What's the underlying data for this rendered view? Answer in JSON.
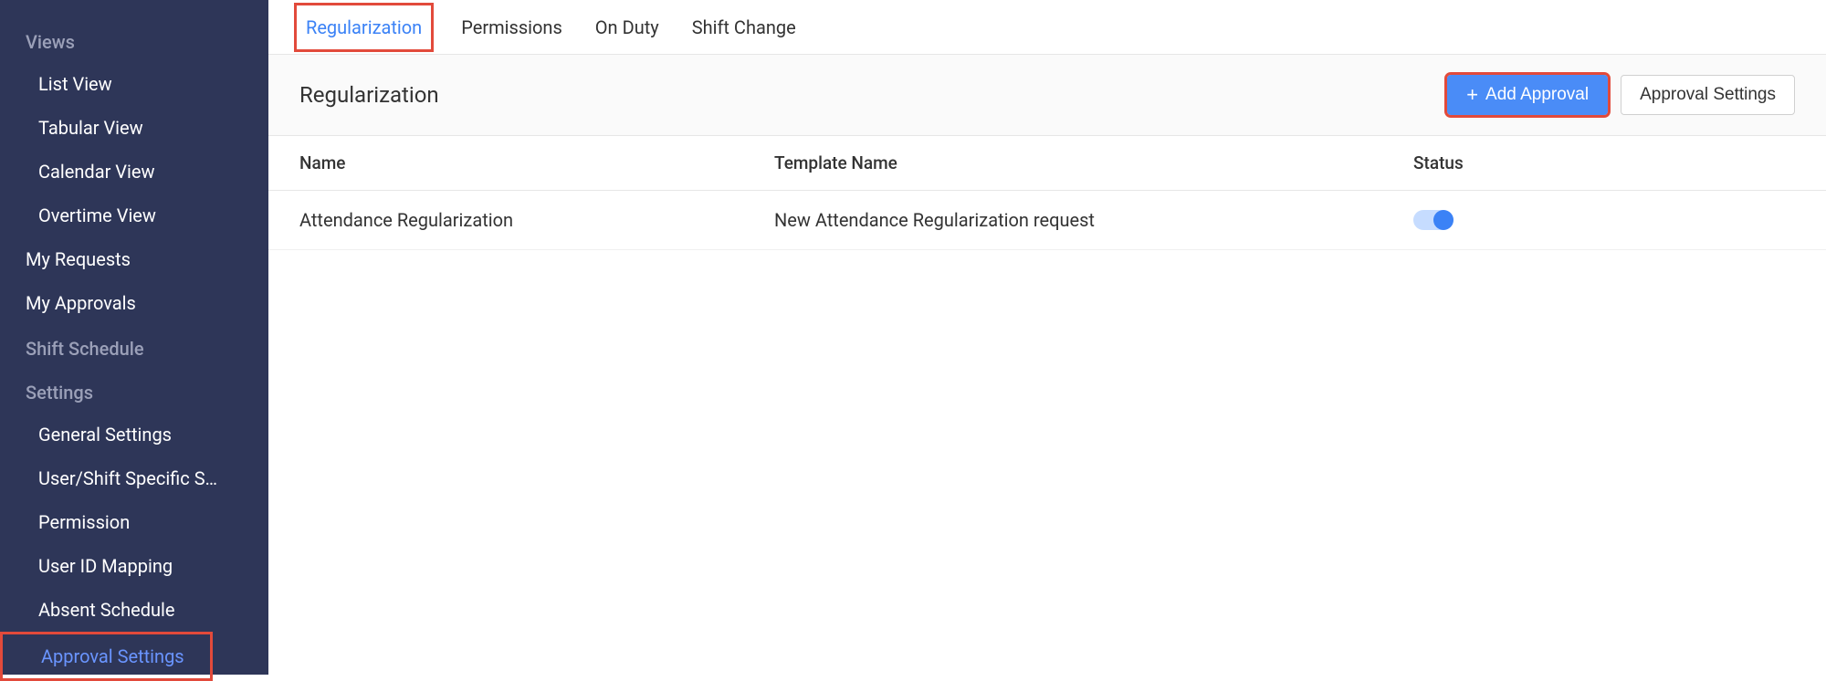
{
  "sidebar": {
    "sections": [
      {
        "label": "Views",
        "items": [
          {
            "label": "List View",
            "indent": true
          },
          {
            "label": "Tabular View",
            "indent": true
          },
          {
            "label": "Calendar View",
            "indent": true
          },
          {
            "label": "Overtime View",
            "indent": true
          }
        ]
      }
    ],
    "top_items": [
      {
        "label": "My Requests"
      },
      {
        "label": "My Approvals"
      },
      {
        "label": "Shift Schedule",
        "is_section": true
      }
    ],
    "settings_section": {
      "label": "Settings",
      "items": [
        {
          "label": "General Settings"
        },
        {
          "label": "User/Shift Specific S…"
        },
        {
          "label": "Permission"
        },
        {
          "label": "User ID Mapping"
        },
        {
          "label": "Absent Schedule"
        },
        {
          "label": "Approval Settings",
          "active": true,
          "highlighted": true
        }
      ]
    }
  },
  "tabs": [
    {
      "label": "Regularization",
      "active": true,
      "highlighted": true
    },
    {
      "label": "Permissions"
    },
    {
      "label": "On Duty"
    },
    {
      "label": "Shift Change"
    }
  ],
  "page": {
    "title": "Regularization",
    "add_button": "Add Approval",
    "settings_button": "Approval Settings"
  },
  "table": {
    "columns": {
      "name": "Name",
      "template": "Template Name",
      "status": "Status"
    },
    "rows": [
      {
        "name": "Attendance Regularization",
        "template": "New Attendance Regularization request",
        "status_on": true
      }
    ]
  },
  "colors": {
    "sidebar_bg": "#2e3658",
    "accent_blue": "#4a8cf7",
    "highlight_red": "#e24a3b",
    "active_link": "#6a95ff"
  }
}
